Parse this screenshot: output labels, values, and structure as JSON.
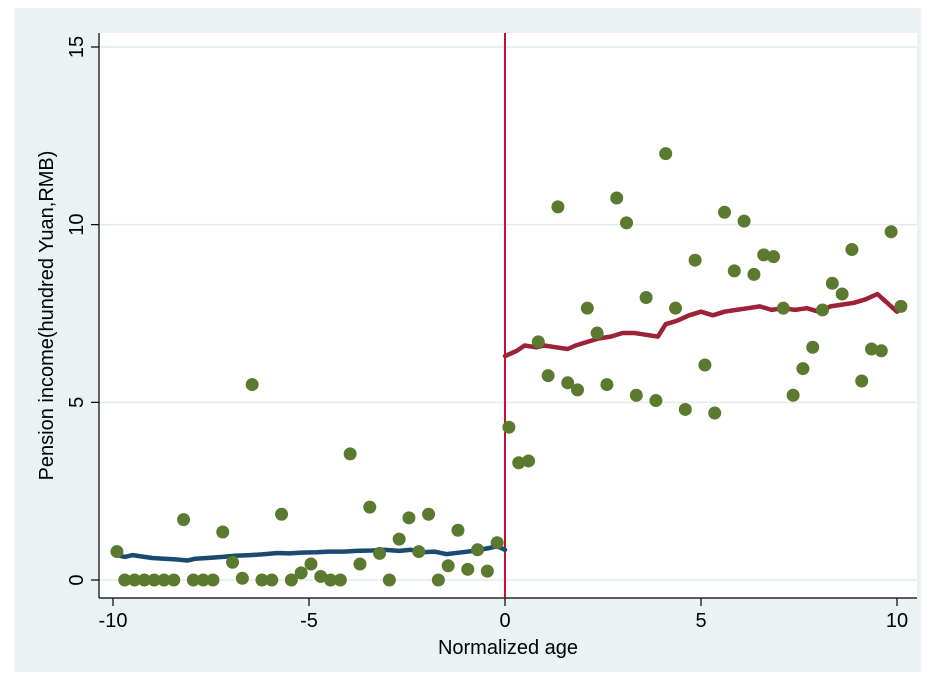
{
  "chart_data": {
    "type": "scatter",
    "title": "",
    "xlabel": "Normalized age",
    "ylabel": "Pension income(hundred Yuan,RMB)",
    "xlim": [
      -10.3,
      10.3
    ],
    "ylim": [
      -0.5,
      15.5
    ],
    "xticks": [
      -10,
      -5,
      0,
      5,
      10
    ],
    "xtick_labels": [
      "-10",
      "-5",
      "0",
      "5",
      "10"
    ],
    "yticks": [
      0,
      5,
      10,
      15
    ],
    "ytick_labels": [
      "0",
      "5",
      "10",
      "15"
    ],
    "grid": "horizontal",
    "cutoff_x": 0,
    "colors": {
      "background": "#eaf2f3",
      "plot_area": "#ffffff",
      "points": "#5a7a30",
      "left_fit": "#1a4a72",
      "right_fit": "#9b2335",
      "cutoff_line": "#c8102e",
      "grid": "#e1eaec"
    },
    "series": [
      {
        "kind": "scatter",
        "x": [
          -9.9,
          -9.7,
          -9.45,
          -9.2,
          -8.95,
          -8.7,
          -8.45,
          -8.2,
          -7.95,
          -7.7,
          -7.45,
          -7.2,
          -6.95,
          -6.7,
          -6.45,
          -6.2,
          -5.95,
          -5.7,
          -5.45,
          -5.2,
          -4.95,
          -4.7,
          -4.45,
          -4.2,
          -3.95,
          -3.7,
          -3.45,
          -3.2,
          -2.95,
          -2.7,
          -2.45,
          -2.2,
          -1.95,
          -1.7,
          -1.45,
          -1.2,
          -0.95,
          -0.7,
          -0.45,
          -0.2,
          0.1,
          0.35,
          0.6,
          0.85,
          1.1,
          1.35,
          1.6,
          1.85,
          2.1,
          2.35,
          2.6,
          2.85,
          3.1,
          3.35,
          3.6,
          3.85,
          4.1,
          4.35,
          4.6,
          4.85,
          5.1,
          5.35,
          5.6,
          5.85,
          6.1,
          6.35,
          6.6,
          6.85,
          7.1,
          7.35,
          7.6,
          7.85,
          8.1,
          8.35,
          8.6,
          8.85,
          9.1,
          9.35,
          9.6,
          9.85,
          10.1
        ],
        "y": [
          0.8,
          0,
          0,
          0,
          0,
          0,
          0,
          1.7,
          0,
          0,
          0,
          1.35,
          0.5,
          0.05,
          5.5,
          0,
          0,
          1.85,
          0,
          0.2,
          0.45,
          0.1,
          0,
          0,
          3.55,
          0.45,
          2.05,
          0.75,
          0,
          1.15,
          1.75,
          0.8,
          1.85,
          0,
          0.4,
          1.4,
          0.3,
          0.85,
          0.25,
          1.05,
          4.3,
          3.3,
          3.35,
          6.7,
          5.75,
          10.5,
          5.55,
          5.35,
          7.65,
          6.95,
          5.5,
          10.75,
          10.05,
          5.2,
          7.95,
          5.05,
          12.0,
          7.65,
          4.8,
          9.0,
          6.05,
          4.7,
          10.35,
          8.7,
          10.1,
          8.6,
          9.15,
          9.1,
          7.65,
          5.2,
          5.95,
          6.55,
          7.6,
          8.35,
          8.05,
          9.3,
          5.6,
          6.5,
          6.45,
          9.8,
          7.7
        ]
      },
      {
        "kind": "line",
        "side": "left",
        "x": [
          -9.9,
          -9.7,
          -9.5,
          -9.2,
          -9.0,
          -8.7,
          -8.4,
          -8.1,
          -7.9,
          -7.6,
          -7.2,
          -6.9,
          -6.5,
          -6.2,
          -5.8,
          -5.5,
          -5.2,
          -4.8,
          -4.5,
          -4.1,
          -3.8,
          -3.4,
          -3.1,
          -2.7,
          -2.4,
          -2.1,
          -1.8,
          -1.5,
          -1.1,
          -0.8,
          -0.4,
          -0.2,
          0.0
        ],
        "y": [
          0.7,
          0.65,
          0.7,
          0.65,
          0.62,
          0.6,
          0.58,
          0.55,
          0.6,
          0.62,
          0.65,
          0.68,
          0.7,
          0.72,
          0.76,
          0.75,
          0.77,
          0.78,
          0.8,
          0.8,
          0.82,
          0.83,
          0.85,
          0.82,
          0.85,
          0.78,
          0.8,
          0.73,
          0.78,
          0.82,
          0.9,
          0.95,
          0.85
        ]
      },
      {
        "kind": "line",
        "side": "right",
        "x": [
          0.0,
          0.3,
          0.5,
          0.8,
          1.0,
          1.3,
          1.6,
          1.8,
          2.1,
          2.4,
          2.7,
          3.0,
          3.3,
          3.6,
          3.9,
          4.1,
          4.4,
          4.7,
          5.0,
          5.3,
          5.6,
          5.9,
          6.2,
          6.5,
          6.8,
          7.1,
          7.4,
          7.7,
          8.0,
          8.3,
          8.6,
          8.9,
          9.2,
          9.5,
          9.7,
          10.0
        ],
        "y": [
          6.3,
          6.45,
          6.6,
          6.55,
          6.6,
          6.55,
          6.5,
          6.6,
          6.7,
          6.8,
          6.85,
          6.95,
          6.95,
          6.9,
          6.85,
          7.2,
          7.3,
          7.45,
          7.55,
          7.45,
          7.55,
          7.6,
          7.65,
          7.7,
          7.6,
          7.65,
          7.6,
          7.65,
          7.55,
          7.7,
          7.75,
          7.8,
          7.9,
          8.05,
          7.85,
          7.55
        ]
      }
    ]
  }
}
